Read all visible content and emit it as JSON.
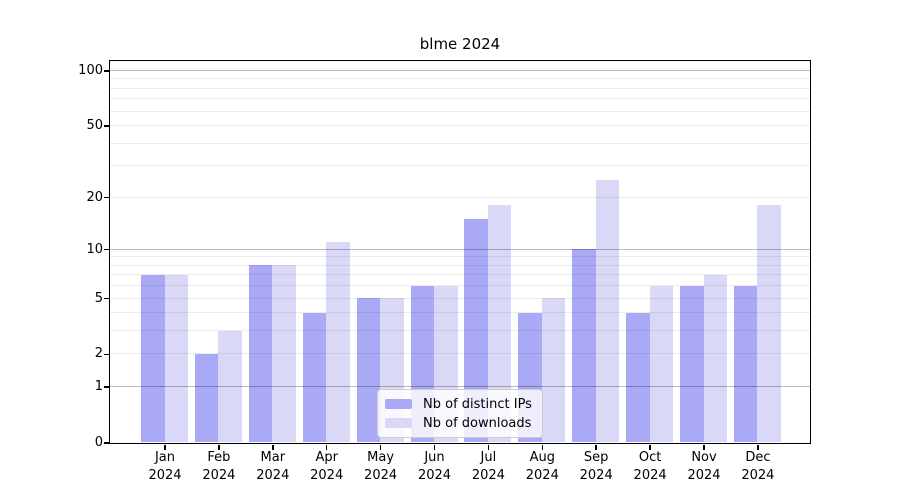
{
  "figure": {
    "background": "#ffffff"
  },
  "chart_data": {
    "type": "bar",
    "title": "blme 2024",
    "categories": [
      "Jan 2024",
      "Feb 2024",
      "Mar 2024",
      "Apr 2024",
      "May 2024",
      "Jun 2024",
      "Jul 2024",
      "Aug 2024",
      "Sep 2024",
      "Oct 2024",
      "Nov 2024",
      "Dec 2024"
    ],
    "series": [
      {
        "name": "Nb of distinct IPs",
        "color": "#a9a9f5",
        "values": [
          7,
          2,
          8,
          4,
          5,
          6,
          15,
          4,
          10,
          4,
          6,
          6
        ]
      },
      {
        "name": "Nb of downloads",
        "color": "#d9d9f7",
        "values": [
          7,
          3,
          8,
          11,
          5,
          6,
          18,
          5,
          25,
          6,
          7,
          18
        ]
      }
    ],
    "xlabel": "",
    "ylabel": "",
    "y_axis": {
      "scale": "log1p",
      "tick_labels": [
        0,
        1,
        2,
        5,
        10,
        20,
        50,
        100
      ],
      "major_gridlines": [
        1,
        10,
        100
      ],
      "minor_gridlines": [
        2,
        3,
        4,
        5,
        6,
        7,
        8,
        9,
        20,
        30,
        40,
        50,
        60,
        70,
        80,
        90
      ],
      "ylim": [
        0,
        113
      ]
    },
    "grid": true,
    "legend": {
      "position": "lower center",
      "labels": [
        "Nb of distinct IPs",
        "Nb of downloads"
      ]
    },
    "colors": {
      "major_grid": "rgba(0,0,0,0.27)",
      "minor_grid": "rgba(0,0,0,0.075)",
      "spine": "#000000",
      "text": "#000000"
    }
  }
}
